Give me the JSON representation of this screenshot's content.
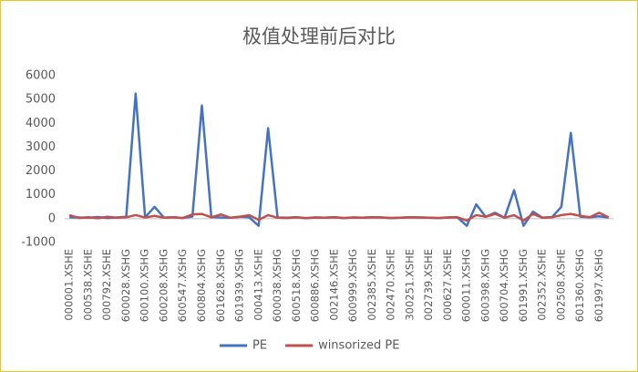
{
  "chart_data": {
    "type": "line",
    "title": "极值处理前后对比",
    "categories": [
      "000001.XSHE",
      null,
      "000538.XSHE",
      null,
      "000792.XSHE",
      null,
      "600028.XSHG",
      null,
      "600100.XSHG",
      null,
      "600208.XSHG",
      null,
      "600547.XSHG",
      null,
      "600804.XSHG",
      null,
      "601628.XSHG",
      null,
      "601939.XSHG",
      null,
      "000413.XSHE",
      null,
      "600038.XSHG",
      null,
      "600518.XSHG",
      null,
      "600886.XSHG",
      null,
      "002146.XSHE",
      null,
      "600999.XSHG",
      null,
      "002385.XSHE",
      null,
      "002470.XSHE",
      null,
      "300251.XSHE",
      null,
      "002739.XSHE",
      null,
      "000627.XSHE",
      null,
      "600011.XSHG",
      null,
      "600398.XSHG",
      null,
      "600704.XSHG",
      null,
      "601991.XSHG",
      null,
      "002352.XSHE",
      null,
      "002508.XSHE",
      null,
      "601360.XSHG",
      null,
      "601997.XSHG",
      null
    ],
    "series": [
      {
        "name": "PE",
        "color": "#4472c4",
        "values": [
          60,
          50,
          40,
          70,
          30,
          50,
          80,
          5250,
          60,
          500,
          40,
          60,
          30,
          90,
          4750,
          70,
          50,
          40,
          80,
          60,
          -300,
          3800,
          50,
          40,
          60,
          30,
          50,
          40,
          60,
          30,
          50,
          40,
          60,
          50,
          30,
          40,
          60,
          50,
          40,
          30,
          50,
          60,
          -300,
          600,
          80,
          250,
          40,
          1200,
          -300,
          300,
          40,
          60,
          500,
          3600,
          80,
          60,
          100,
          50
        ]
      },
      {
        "name": "winsorized PE",
        "color": "#c0504d",
        "values": [
          150,
          30,
          60,
          20,
          80,
          40,
          60,
          150,
          50,
          120,
          40,
          60,
          30,
          180,
          200,
          60,
          180,
          40,
          80,
          150,
          -50,
          150,
          40,
          30,
          60,
          20,
          50,
          40,
          60,
          30,
          50,
          40,
          60,
          50,
          30,
          40,
          60,
          50,
          40,
          30,
          50,
          60,
          -80,
          150,
          80,
          200,
          40,
          150,
          -80,
          200,
          40,
          60,
          150,
          200,
          120,
          60,
          250,
          50
        ]
      }
    ],
    "ylim": [
      -1000,
      6000
    ],
    "yticks": [
      -1000,
      0,
      1000,
      2000,
      3000,
      4000,
      5000,
      6000
    ],
    "grid": false,
    "legend": "bottom"
  }
}
